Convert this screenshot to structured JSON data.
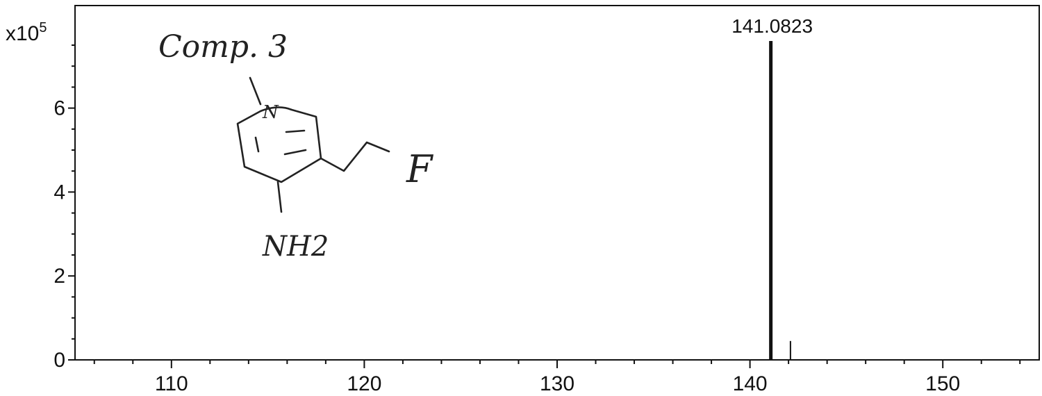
{
  "chart_data": {
    "type": "bar",
    "title": "",
    "xlabel": "",
    "ylabel": "",
    "y_scale_label": "x10",
    "y_scale_exponent": "5",
    "xlim": [
      105,
      155
    ],
    "ylim": [
      0,
      7.5
    ],
    "x_ticks": [
      110,
      120,
      130,
      140,
      150
    ],
    "y_ticks": [
      0,
      2,
      4,
      6
    ],
    "grid": false,
    "peaks": [
      {
        "x": 141.0823,
        "y": 7.6,
        "label": "141.0823"
      },
      {
        "x": 142.1,
        "y": 0.45,
        "label": ""
      }
    ]
  },
  "annotation": {
    "compound_label": "Comp. 3",
    "atom_n": "N",
    "atom_f": "F",
    "group_nh2": "NH2"
  },
  "colors": {
    "axis": "#111111",
    "peak": "#111111",
    "handwriting": "#222222"
  }
}
